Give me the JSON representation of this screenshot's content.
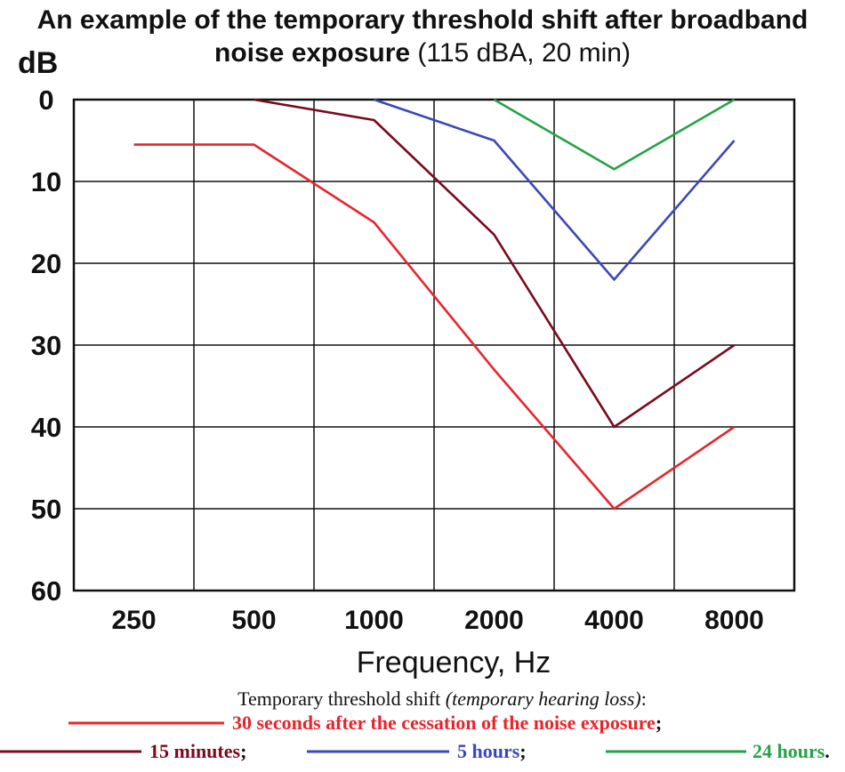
{
  "chart_data": {
    "type": "line",
    "title_main": "An example of the temporary threshold shift after broadband noise exposure",
    "title_detail": "(115 dBA, 20 min)",
    "ylabel": "dB",
    "xlabel": "Frequency, Hz",
    "categories": [
      "250",
      "500",
      "1000",
      "2000",
      "4000",
      "8000"
    ],
    "yticks": [
      "0",
      "10",
      "20",
      "30",
      "40",
      "50",
      "60"
    ],
    "ylim": [
      0,
      60
    ],
    "y_inverted": true,
    "grid": true,
    "legend_caption": "Temporary threshold shift",
    "legend_caption_italic": "(temporary hearing loss)",
    "legend_caption_end": ":",
    "series": [
      {
        "name": "30 seconds after the cessation of the noise exposure",
        "suffix": ";",
        "color": "#e8252b",
        "values": [
          5.5,
          5.5,
          15,
          33,
          50,
          40
        ]
      },
      {
        "name": "15 minutes",
        "suffix": ";",
        "color": "#7a0a1c",
        "values": [
          null,
          0,
          2.5,
          16.5,
          40,
          30
        ]
      },
      {
        "name": "5 hours",
        "suffix": ";",
        "color": "#3b48b8",
        "values": [
          null,
          null,
          0,
          5,
          22,
          5
        ]
      },
      {
        "name": "24 hours",
        "suffix": ".",
        "color": "#24a346",
        "values": [
          null,
          null,
          null,
          0,
          8.5,
          0
        ]
      }
    ]
  }
}
